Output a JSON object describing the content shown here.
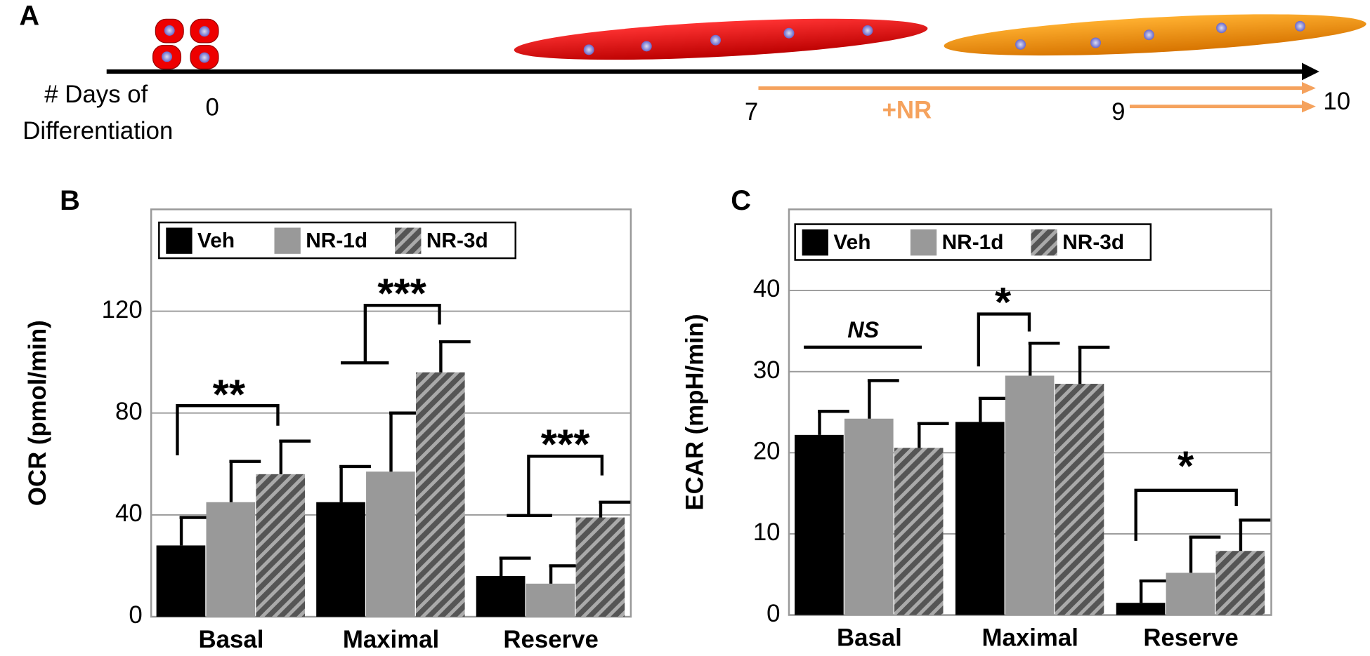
{
  "panel_a": {
    "label": "A",
    "axis_label_1": "# Days of",
    "axis_label_2": "Differentiation",
    "day_0": "0",
    "day_7": "7",
    "treatment": "+NR",
    "day_9": "9",
    "day_10": "10"
  },
  "chart_data": [
    {
      "type": "bar",
      "panel_label": "B",
      "y_label": "OCR (pmol/min)",
      "categories": [
        "Basal",
        "Maximal",
        "Reserve"
      ],
      "series": [
        {
          "name": "Veh",
          "color": "#000000",
          "hatch": false,
          "values": [
            28,
            45,
            16
          ],
          "errors": [
            11,
            14,
            7
          ]
        },
        {
          "name": "NR-1d",
          "color": "#999999",
          "hatch": false,
          "values": [
            45,
            57,
            13
          ],
          "errors": [
            16,
            23,
            7
          ]
        },
        {
          "name": "NR-3d",
          "color": "#666666",
          "hatch": true,
          "values": [
            56,
            96,
            39
          ],
          "errors": [
            13,
            12,
            6
          ]
        }
      ],
      "ylim": [
        0,
        160
      ],
      "yticks": [
        0,
        40,
        80,
        120
      ],
      "grid": true,
      "annotations": [
        "**",
        "***",
        "***"
      ]
    },
    {
      "type": "bar",
      "panel_label": "C",
      "y_label": "ECAR (mpH/min)",
      "categories": [
        "Basal",
        "Maximal",
        "Reserve"
      ],
      "series": [
        {
          "name": "Veh",
          "color": "#000000",
          "hatch": false,
          "values": [
            22.2,
            23.8,
            1.5
          ],
          "errors": [
            2.9,
            2.9,
            2.7
          ]
        },
        {
          "name": "NR-1d",
          "color": "#999999",
          "hatch": false,
          "values": [
            24.2,
            29.5,
            5.2
          ],
          "errors": [
            4.7,
            4.0,
            4.4
          ]
        },
        {
          "name": "NR-3d",
          "color": "#666666",
          "hatch": true,
          "values": [
            20.6,
            28.5,
            7.9
          ],
          "errors": [
            3.0,
            4.5,
            3.8
          ]
        }
      ],
      "ylim": [
        0,
        50
      ],
      "yticks": [
        0,
        10,
        20,
        30,
        40
      ],
      "grid": true,
      "annotations": [
        "NS",
        "*",
        "*"
      ]
    }
  ]
}
